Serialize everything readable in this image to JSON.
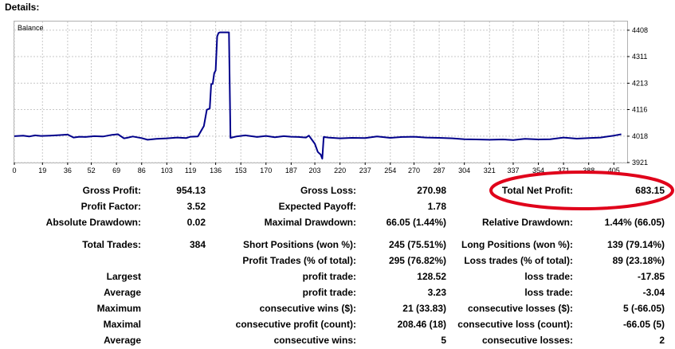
{
  "header": {
    "title": "Details:"
  },
  "chart": {
    "series_label": "Balance",
    "line_color": "#00008b"
  },
  "chart_data": {
    "type": "line",
    "title": "",
    "xlabel": "",
    "ylabel": "",
    "series": [
      {
        "name": "Balance",
        "x": [
          0,
          6,
          10,
          14,
          18,
          24,
          30,
          36,
          40,
          44,
          48,
          54,
          60,
          66,
          70,
          74,
          76,
          80,
          86,
          90,
          96,
          103,
          110,
          116,
          119,
          124,
          128,
          130,
          132,
          133,
          134,
          135,
          136,
          137,
          138,
          139,
          140,
          141,
          142,
          143,
          144,
          145,
          146,
          150,
          156,
          164,
          170,
          176,
          182,
          187,
          192,
          197,
          199,
          201,
          203,
          205,
          207,
          208,
          209,
          212,
          220,
          228,
          237,
          245,
          254,
          262,
          270,
          278,
          287,
          296,
          304,
          312,
          321,
          330,
          337,
          345,
          354,
          362,
          371,
          380,
          388,
          396,
          405,
          410
        ],
        "values": [
          4018,
          4020,
          4017,
          4021,
          4019,
          4020,
          4022,
          4024,
          4013,
          4016,
          4015,
          4018,
          4017,
          4023,
          4025,
          4010,
          4012,
          4017,
          4011,
          4005,
          4008,
          4010,
          4013,
          4011,
          4016,
          4017,
          4055,
          4115,
          4120,
          4210,
          4210,
          4250,
          4260,
          4385,
          4398,
          4400,
          4400,
          4400,
          4400,
          4400,
          4400,
          4400,
          4012,
          4017,
          4021,
          4015,
          4019,
          4014,
          4018,
          4016,
          4015,
          4013,
          4020,
          4005,
          3990,
          3960,
          3950,
          3935,
          4015,
          4013,
          4010,
          4012,
          4011,
          4017,
          4012,
          4015,
          4016,
          4013,
          4012,
          4010,
          4007,
          4006,
          4005,
          4006,
          4004,
          4008,
          4006,
          4007,
          4013,
          4009,
          4011,
          4013,
          4020,
          4025
        ]
      }
    ],
    "xlim": [
      0,
      414
    ],
    "ylim": [
      3921,
      4440
    ],
    "x_ticks": [
      "0",
      "19",
      "36",
      "52",
      "69",
      "86",
      "103",
      "119",
      "136",
      "153",
      "170",
      "187",
      "203",
      "220",
      "237",
      "254",
      "270",
      "287",
      "304",
      "321",
      "337",
      "354",
      "371",
      "388",
      "405"
    ],
    "y_ticks": [
      "4408",
      "4311",
      "4213",
      "4116",
      "4018",
      "3921"
    ],
    "grid": true,
    "legend": "none"
  },
  "stats": {
    "gross_profit": {
      "label": "Gross Profit:",
      "value": "954.13"
    },
    "gross_loss": {
      "label": "Gross Loss:",
      "value": "270.98"
    },
    "total_net_profit": {
      "label": "Total Net Profit:",
      "value": "683.15"
    },
    "profit_factor": {
      "label": "Profit Factor:",
      "value": "3.52"
    },
    "expected_payoff": {
      "label": "Expected Payoff:",
      "value": "1.78"
    },
    "absolute_drawdown": {
      "label": "Absolute Drawdown:",
      "value": "0.02"
    },
    "maximal_drawdown": {
      "label": "Maximal Drawdown:",
      "value": "66.05 (1.44%)"
    },
    "relative_drawdown": {
      "label": "Relative Drawdown:",
      "value": "1.44% (66.05)"
    },
    "total_trades": {
      "label": "Total Trades:",
      "value": "384"
    },
    "short_positions": {
      "label": "Short Positions (won %):",
      "value": "245 (75.51%)"
    },
    "long_positions": {
      "label": "Long Positions (won %):",
      "value": "139 (79.14%)"
    },
    "profit_trades": {
      "label": "Profit Trades (% of total):",
      "value": "295 (76.82%)"
    },
    "loss_trades": {
      "label": "Loss trades (% of total):",
      "value": "89 (23.18%)"
    },
    "largest_label": "Largest",
    "largest_profit": {
      "label": "profit trade:",
      "value": "128.52"
    },
    "largest_loss": {
      "label": "loss trade:",
      "value": "-17.85"
    },
    "average_label": "Average",
    "average_profit": {
      "label": "profit trade:",
      "value": "3.23"
    },
    "average_loss": {
      "label": "loss trade:",
      "value": "-3.04"
    },
    "maximum_label": "Maximum",
    "max_consec_wins": {
      "label": "consecutive wins ($):",
      "value": "21 (33.83)"
    },
    "max_consec_losses": {
      "label": "consecutive losses ($):",
      "value": "5 (-66.05)"
    },
    "maximal_label": "Maximal",
    "maximal_consec_profit": {
      "label": "consecutive profit (count):",
      "value": "208.46 (18)"
    },
    "maximal_consec_loss": {
      "label": "consecutive loss (count):",
      "value": "-66.05 (5)"
    },
    "average2_label": "Average",
    "avg_consec_wins": {
      "label": "consecutive wins:",
      "value": "5"
    },
    "avg_consec_losses": {
      "label": "consecutive losses:",
      "value": "2"
    }
  },
  "highlight": {
    "color": "#e0001a",
    "target": "total_net_profit"
  }
}
